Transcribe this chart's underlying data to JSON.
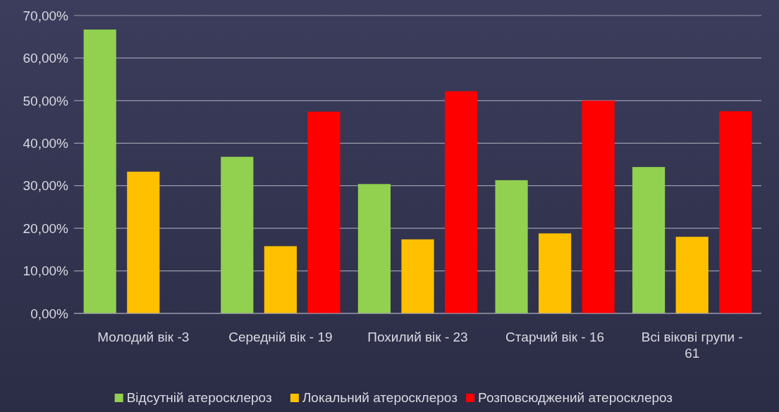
{
  "chart_data": {
    "type": "bar",
    "categories": [
      "Молодий вік  -3",
      "Середній вік - 19",
      "Похилий вік - 23",
      "Старчий вік - 16",
      "Всі вікові групи - 61"
    ],
    "series": [
      {
        "name": "Відсутній атеросклероз",
        "color": "#92d050",
        "values": [
          66.7,
          36.8,
          30.4,
          31.3,
          34.4
        ]
      },
      {
        "name": "Локальний атеросклероз",
        "color": "#ffc000",
        "values": [
          33.3,
          15.8,
          17.4,
          18.8,
          18.0
        ]
      },
      {
        "name": "Розповсюджений атеросклероз",
        "color": "#ff0000",
        "values": [
          0,
          47.4,
          52.2,
          50.0,
          47.5
        ]
      }
    ],
    "ylim": [
      0,
      70
    ],
    "yticks": [
      {
        "value": 0,
        "label": "0,00%"
      },
      {
        "value": 10,
        "label": "10,00%"
      },
      {
        "value": 20,
        "label": "20,00%"
      },
      {
        "value": 30,
        "label": "30,00%"
      },
      {
        "value": 40,
        "label": "40,00%"
      },
      {
        "value": 50,
        "label": "50,00%"
      },
      {
        "value": 60,
        "label": "60,00%"
      },
      {
        "value": 70,
        "label": "70,00%"
      }
    ],
    "grid": true,
    "legend": "bottom"
  }
}
